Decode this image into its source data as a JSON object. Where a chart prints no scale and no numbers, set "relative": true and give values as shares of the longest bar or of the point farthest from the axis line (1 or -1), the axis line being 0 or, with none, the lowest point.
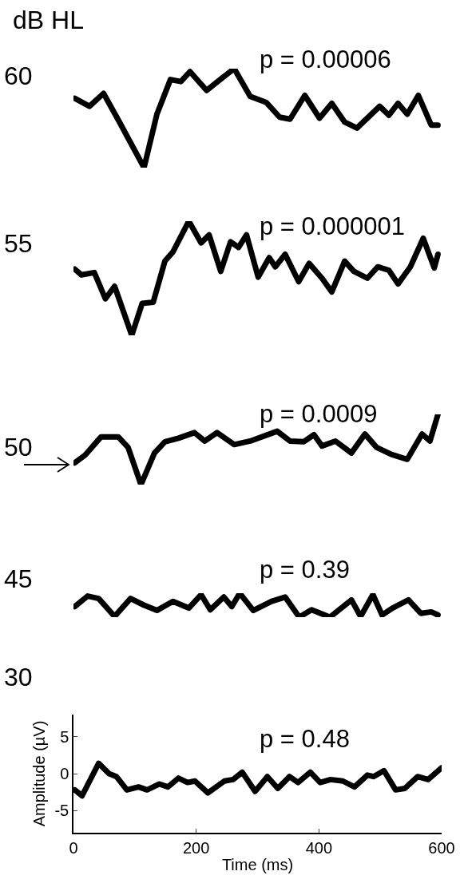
{
  "chart_data": [
    {
      "type": "line",
      "title": "60",
      "annotations": [
        "dB HL",
        "p = 0.00006"
      ],
      "xlim": [
        0,
        600
      ],
      "relative": true,
      "tick_labels": false,
      "x": [
        2,
        26,
        49,
        75,
        115,
        136,
        158,
        175,
        190,
        217,
        245,
        262,
        288,
        314,
        336,
        353,
        377,
        401,
        421,
        442,
        462,
        499,
        514,
        529,
        544,
        562,
        583,
        594
      ],
      "series": [
        {
          "color": "#000000",
          "values": [
            0.7,
            0.62,
            0.75,
            0.46,
            0,
            0.54,
            0.89,
            0.87,
            0.97,
            0.78,
            0.92,
            1,
            0.72,
            0.66,
            0.51,
            0.49,
            0.73,
            0.5,
            0.65,
            0.46,
            0.4,
            0.62,
            0.53,
            0.65,
            0.54,
            0.73,
            0.43,
            0.43
          ]
        }
      ]
    },
    {
      "type": "line",
      "title": "55",
      "annotations": [
        "p = 0.000001"
      ],
      "xlim": [
        0,
        600
      ],
      "relative": true,
      "tick_labels": false,
      "x": [
        2,
        13,
        34,
        52,
        67,
        95,
        112,
        130,
        149,
        162,
        188,
        208,
        221,
        240,
        256,
        269,
        282,
        301,
        319,
        329,
        345,
        367,
        384,
        405,
        421,
        442,
        457,
        479,
        496,
        514,
        529,
        549,
        570,
        588,
        594
      ],
      "series": [
        {
          "color": "#000000",
          "values": [
            0.58,
            0.53,
            0.55,
            0.32,
            0.43,
            0,
            0.28,
            0.29,
            0.65,
            0.73,
            1,
            0.81,
            0.88,
            0.56,
            0.82,
            0.77,
            0.88,
            0.51,
            0.68,
            0.6,
            0.71,
            0.47,
            0.63,
            0.5,
            0.38,
            0.65,
            0.56,
            0.5,
            0.6,
            0.57,
            0.45,
            0.6,
            0.85,
            0.59,
            0.71
          ]
        }
      ]
    },
    {
      "type": "line",
      "title": "50",
      "annotations": [
        "p = 0.0009"
      ],
      "xlim": [
        0,
        600
      ],
      "relative": true,
      "tick_labels": false,
      "x": [
        2,
        19,
        45,
        73,
        89,
        110,
        132,
        149,
        171,
        197,
        214,
        234,
        262,
        288,
        332,
        353,
        375,
        392,
        405,
        427,
        453,
        475,
        494,
        518,
        544,
        568,
        581,
        594
      ],
      "series": [
        {
          "color": "#000000",
          "values": [
            0.31,
            0.42,
            0.68,
            0.68,
            0.53,
            0,
            0.45,
            0.61,
            0.66,
            0.74,
            0.62,
            0.74,
            0.57,
            0.62,
            0.76,
            0.62,
            0.61,
            0.71,
            0.55,
            0.62,
            0.45,
            0.72,
            0.53,
            0.43,
            0.36,
            0.72,
            0.62,
            1
          ]
        }
      ]
    },
    {
      "type": "line",
      "title": "45",
      "annotations": [
        "p = 0.39"
      ],
      "xlim": [
        0,
        600
      ],
      "relative": true,
      "tick_labels": false,
      "x": [
        2,
        23,
        41,
        67,
        93,
        115,
        136,
        162,
        188,
        208,
        223,
        245,
        258,
        271,
        293,
        323,
        345,
        368,
        388,
        418,
        453,
        468,
        488,
        503,
        520,
        546,
        566,
        583,
        594
      ],
      "series": [
        {
          "color": "#000000",
          "values": [
            0.44,
            0.88,
            0.78,
            0.03,
            0.78,
            0.5,
            0.28,
            0.66,
            0.38,
            0.94,
            0.31,
            0.84,
            0.44,
            1,
            0.28,
            0.66,
            0.84,
            0,
            0.31,
            0,
            0.72,
            0.03,
            0.94,
            0.09,
            0.38,
            0.72,
            0.16,
            0.22,
            0.09
          ]
        }
      ]
    },
    {
      "type": "line",
      "title": "30",
      "annotations": [
        "p = 0.48"
      ],
      "xlabel": "Time (ms)",
      "ylabel": "Amplitude (µV)",
      "xlim": [
        0,
        600
      ],
      "ylim": [
        -8,
        8
      ],
      "xticks": [
        0,
        200,
        400,
        600
      ],
      "yticks": [
        -5,
        0,
        5
      ],
      "x": [
        2,
        14,
        41,
        58,
        70,
        87,
        106,
        120,
        140,
        154,
        171,
        186,
        198,
        219,
        246,
        260,
        275,
        296,
        316,
        333,
        352,
        366,
        386,
        402,
        419,
        439,
        458,
        479,
        489,
        506,
        525,
        540,
        561,
        578,
        600
      ],
      "series": [
        {
          "color": "#000000",
          "values": [
            -2.2,
            -3.0,
            1.4,
            0,
            -0.4,
            -2.2,
            -1.8,
            -2.2,
            -1.4,
            -1.8,
            -0.6,
            -1.2,
            -1.0,
            -2.6,
            -1.0,
            -0.8,
            0.2,
            -2.4,
            -0.4,
            -2.0,
            -0.4,
            -1.2,
            0.2,
            -1.2,
            -0.8,
            -1.0,
            -1.8,
            -0.2,
            -0.4,
            0.4,
            -2.2,
            -2.0,
            -0.4,
            -0.8,
            0.8
          ]
        }
      ]
    }
  ]
}
